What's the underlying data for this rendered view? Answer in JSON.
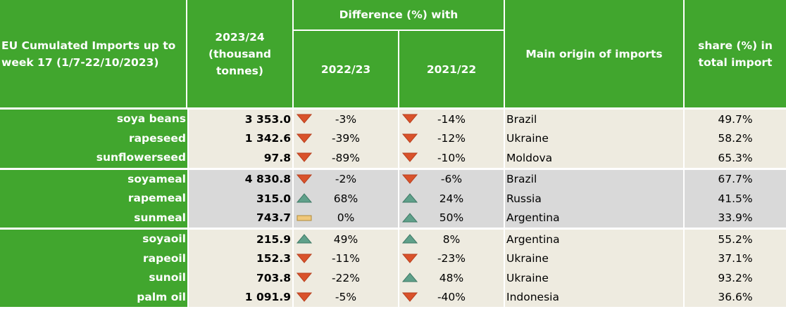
{
  "header": {
    "title": "EU Cumulated Imports up to week 17 (1/7-22/10/2023)",
    "volume": "2023/24 (thousand tonnes)",
    "diff": "Difference (%) with",
    "y1": "2022/23",
    "y2": "2021/22",
    "origin": "Main origin of imports",
    "share": "share (%) in total import"
  },
  "colors": {
    "green": "#41a62e",
    "down": "#d9522b",
    "up": "#5fa08a",
    "flat": "#f0c87a"
  },
  "groups": [
    {
      "shade": "beige",
      "rows": [
        {
          "product": "soya beans",
          "volume": "3 353.0",
          "d1": "-3%",
          "t1": "down",
          "d2": "-14%",
          "t2": "down",
          "origin": "Brazil",
          "share": "49.7%"
        },
        {
          "product": "rapeseed",
          "volume": "1 342.6",
          "d1": "-39%",
          "t1": "down",
          "d2": "-12%",
          "t2": "down",
          "origin": "Ukraine",
          "share": "58.2%"
        },
        {
          "product": "sunflowerseed",
          "volume": "97.8",
          "d1": "-89%",
          "t1": "down",
          "d2": "-10%",
          "t2": "down",
          "origin": "Moldova",
          "share": "65.3%"
        }
      ]
    },
    {
      "shade": "gray",
      "rows": [
        {
          "product": "soyameal",
          "volume": "4 830.8",
          "d1": "-2%",
          "t1": "down",
          "d2": "-6%",
          "t2": "down",
          "origin": "Brazil",
          "share": "67.7%"
        },
        {
          "product": "rapemeal",
          "volume": "315.0",
          "d1": "68%",
          "t1": "up",
          "d2": "24%",
          "t2": "up",
          "origin": "Russia",
          "share": "41.5%"
        },
        {
          "product": "sunmeal",
          "volume": "743.7",
          "d1": "0%",
          "t1": "flat",
          "d2": "50%",
          "t2": "up",
          "origin": "Argentina",
          "share": "33.9%"
        }
      ]
    },
    {
      "shade": "beige",
      "rows": [
        {
          "product": "soyaoil",
          "volume": "215.9",
          "d1": "49%",
          "t1": "up",
          "d2": "8%",
          "t2": "up",
          "origin": "Argentina",
          "share": "55.2%"
        },
        {
          "product": "rapeoil",
          "volume": "152.3",
          "d1": "-11%",
          "t1": "down",
          "d2": "-23%",
          "t2": "down",
          "origin": "Ukraine",
          "share": "37.1%"
        },
        {
          "product": "sunoil",
          "volume": "703.8",
          "d1": "-22%",
          "t1": "down",
          "d2": "48%",
          "t2": "up",
          "origin": "Ukraine",
          "share": "93.2%"
        },
        {
          "product": "palm oil",
          "volume": "1 091.9",
          "d1": "-5%",
          "t1": "down",
          "d2": "-40%",
          "t2": "down",
          "origin": "Indonesia",
          "share": "36.6%"
        }
      ]
    }
  ]
}
